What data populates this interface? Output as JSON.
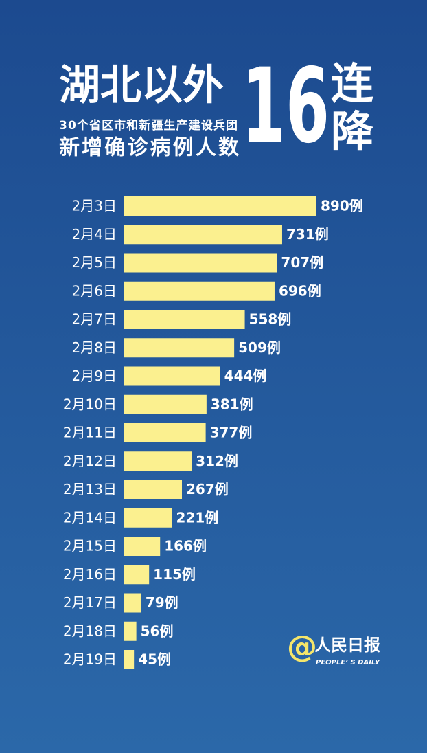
{
  "chart_data": {
    "type": "bar",
    "orientation": "horizontal",
    "title": "湖北以外",
    "subtitle": "30个省区市和新疆生产建设兵团",
    "subtitle2": "新增确诊病例人数",
    "headline_number": "16",
    "headline_text": [
      "连",
      "降"
    ],
    "categories": [
      "2月3日",
      "2月4日",
      "2月5日",
      "2月6日",
      "2月7日",
      "2月8日",
      "2月9日",
      "2月10日",
      "2月11日",
      "2月12日",
      "2月13日",
      "2月14日",
      "2月15日",
      "2月16日",
      "2月17日",
      "2月18日",
      "2月19日"
    ],
    "values": [
      890,
      731,
      707,
      696,
      558,
      509,
      444,
      381,
      377,
      312,
      267,
      221,
      166,
      115,
      79,
      56,
      45
    ],
    "value_labels": [
      "890例",
      "731例",
      "707例",
      "696例",
      "558例",
      "509例",
      "444例",
      "381例",
      "377例",
      "312例",
      "267例",
      "221例",
      "166例",
      "115例",
      "79例",
      "56例",
      "45例"
    ],
    "color": "#fbf08f",
    "source": {
      "at": "@",
      "name": "人民日报",
      "name_en": "PEOPLE’ S DAILY"
    }
  }
}
